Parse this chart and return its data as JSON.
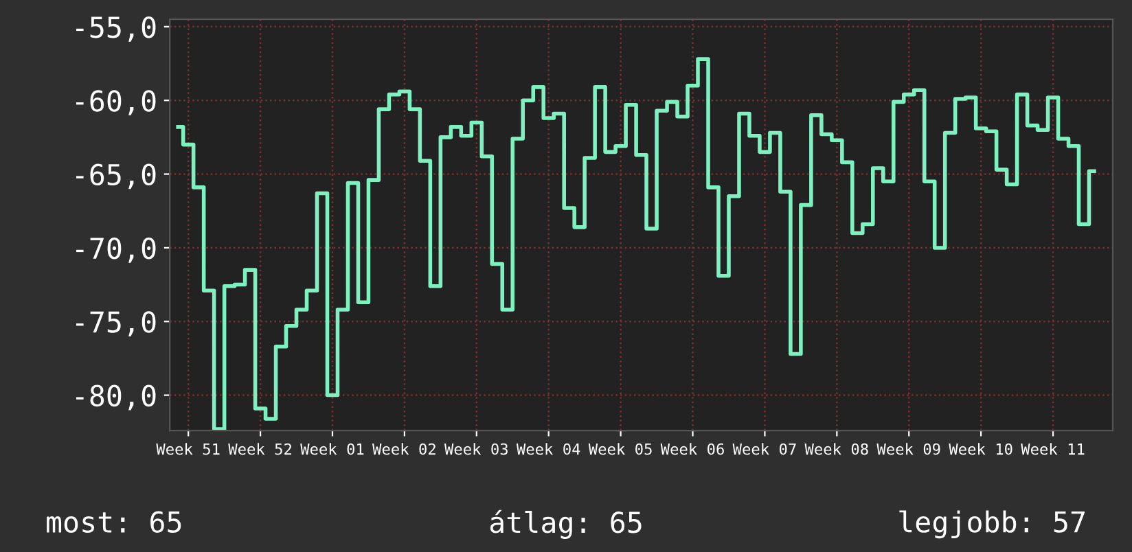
{
  "chart_data": {
    "type": "step",
    "categories": [
      null,
      "Week 51",
      null,
      null,
      null,
      null,
      null,
      null,
      "Week 52",
      null,
      null,
      null,
      null,
      null,
      null,
      "Week 01",
      null,
      null,
      null,
      null,
      null,
      null,
      "Week 02",
      null,
      null,
      null,
      null,
      null,
      null,
      "Week 03",
      null,
      null,
      null,
      null,
      null,
      null,
      "Week 04",
      null,
      null,
      null,
      null,
      null,
      null,
      "Week 05",
      null,
      null,
      null,
      null,
      null,
      null,
      "Week 06",
      null,
      null,
      null,
      null,
      null,
      null,
      "Week 07",
      null,
      null,
      null,
      null,
      null,
      null,
      "Week 08",
      null,
      null,
      null,
      null,
      null,
      null,
      "Week 09",
      null,
      null,
      null,
      null,
      null,
      null,
      "Week 10",
      null,
      null,
      null,
      null,
      null,
      null,
      "Week 11",
      null,
      null,
      null,
      null
    ],
    "series": [
      {
        "color": "#7ff0c0",
        "values": [
          -61.8,
          -63.0,
          -65.9,
          -72.9,
          -82.3,
          -72.6,
          -72.5,
          -71.5,
          -80.9,
          -81.6,
          -76.7,
          -75.3,
          -74.2,
          -72.9,
          -66.3,
          -80.0,
          -74.2,
          -65.6,
          -73.7,
          -65.4,
          -60.6,
          -59.6,
          -59.4,
          -60.6,
          -64.1,
          -72.6,
          -62.5,
          -61.8,
          -62.4,
          -61.5,
          -63.8,
          -71.1,
          -74.2,
          -62.6,
          -60.0,
          -59.1,
          -61.2,
          -60.9,
          -67.3,
          -68.6,
          -63.9,
          -59.1,
          -63.5,
          -63.1,
          -60.3,
          -63.7,
          -68.7,
          -60.7,
          -60.1,
          -61.1,
          -59.0,
          -57.2,
          -65.9,
          -71.9,
          -66.5,
          -60.9,
          -62.4,
          -63.5,
          -62.2,
          -66.2,
          -77.2,
          -67.1,
          -61.0,
          -62.3,
          -62.7,
          -64.2,
          -69.0,
          -68.4,
          -64.6,
          -65.5,
          -60.1,
          -59.6,
          -59.3,
          -65.5,
          -70.0,
          -62.2,
          -59.9,
          -59.8,
          -61.9,
          -62.1,
          -64.7,
          -65.7,
          -59.6,
          -61.7,
          -62.0,
          -59.8,
          -62.6,
          -63.1,
          -68.4,
          -64.8
        ]
      }
    ],
    "ylim": [
      -82.4,
      -54.5
    ],
    "yticks": [
      {
        "value": -80,
        "label": "-80,0"
      },
      {
        "value": -75,
        "label": "-75,0"
      },
      {
        "value": -70,
        "label": "-70,0"
      },
      {
        "value": -65,
        "label": "-65,0"
      },
      {
        "value": -60,
        "label": "-60,0"
      },
      {
        "value": -55,
        "label": "-55,0"
      }
    ],
    "grid": true,
    "annotations": [
      "most: 65",
      "átlag: 65",
      "legjobb: 57"
    ]
  }
}
